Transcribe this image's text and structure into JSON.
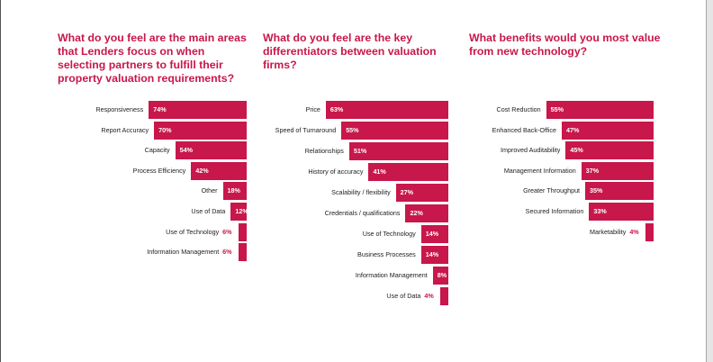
{
  "colors": {
    "accent": "#c8174a",
    "label": "#222222",
    "background": "#ffffff"
  },
  "chart_data": [
    {
      "type": "bar",
      "orientation": "horizontal",
      "title": "What do you feel are the main areas\nthat Lenders focus on when\nselecting partners to fulfill their\nproperty valuation requirements?",
      "categories": [
        "Responsiveness",
        "Report Accuracy",
        "Capacity",
        "Process Efficiency",
        "Other",
        "Use of Data",
        "Use of Technology",
        "Information Management"
      ],
      "values": [
        74,
        70,
        54,
        42,
        18,
        12,
        6,
        6
      ],
      "labels": [
        "74%",
        "70%",
        "54%",
        "42%",
        "18%",
        "12%",
        "6%",
        "6%"
      ],
      "unit": "%"
    },
    {
      "type": "bar",
      "orientation": "horizontal",
      "title": "What do you feel are the key\ndifferentiators between valuation\nfirms?",
      "categories": [
        "Price",
        "Speed of Turnaround",
        "Relationships",
        "History of accuracy",
        "Scalability / flexibility",
        "Credentials / qualifications",
        "Use of Technology",
        "Business Processes",
        "Information Management",
        "Use of Data"
      ],
      "values": [
        63,
        55,
        51,
        41,
        27,
        22,
        14,
        14,
        8,
        4
      ],
      "labels": [
        "63%",
        "55%",
        "51%",
        "41%",
        "27%",
        "22%",
        "14%",
        "14%",
        "8%",
        "4%"
      ],
      "unit": "%"
    },
    {
      "type": "bar",
      "orientation": "horizontal",
      "title": "What benefits would you most value\nfrom new technology?",
      "categories": [
        "Cost Reduction",
        "Enhanced Back-Office",
        "Improved Auditability",
        "Management Information",
        "Greater Throughput",
        "Secured Information",
        "Marketability"
      ],
      "values": [
        55,
        47,
        45,
        37,
        35,
        33,
        4
      ],
      "labels": [
        "55%",
        "47%",
        "45%",
        "37%",
        "35%",
        "33%",
        "4%"
      ],
      "unit": "%"
    }
  ]
}
